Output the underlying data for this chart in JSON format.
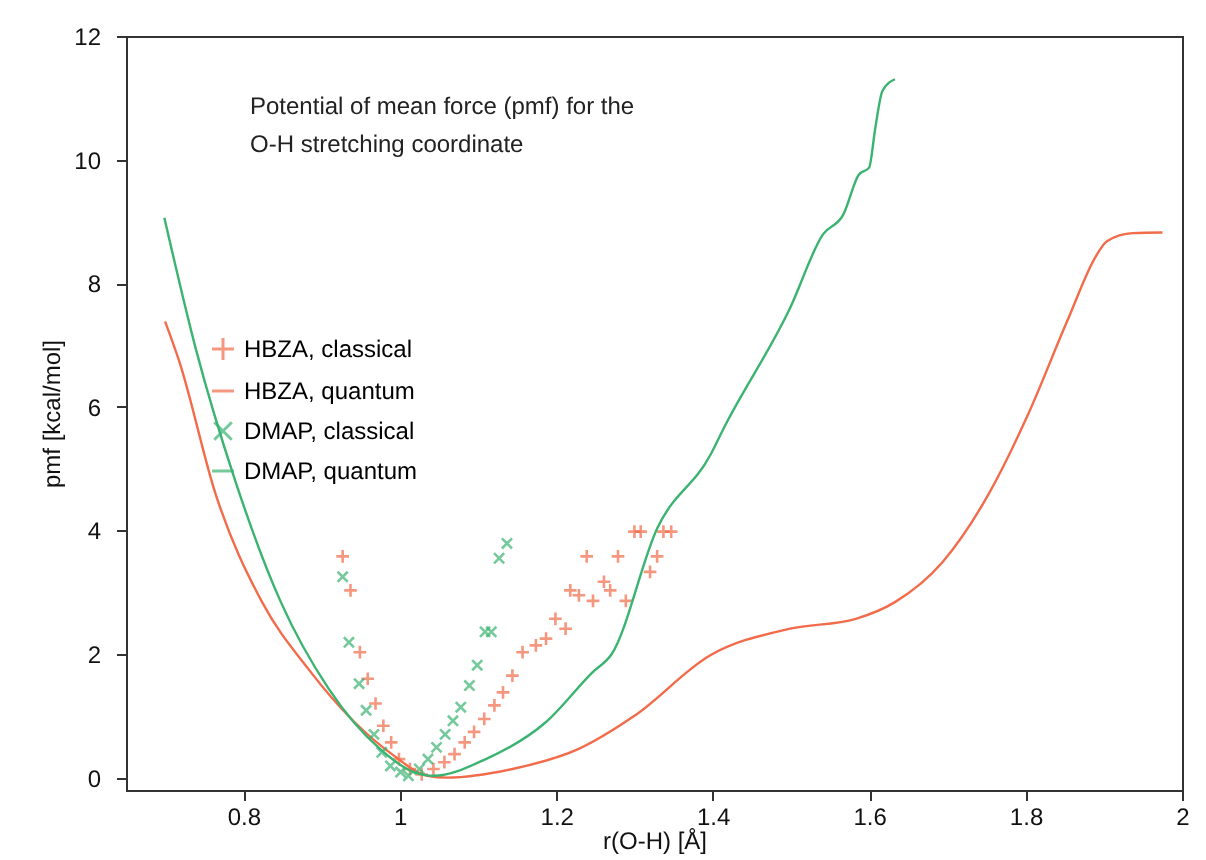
{
  "chart_data": {
    "type": "line",
    "xlabel": "r(O-H) [Å]",
    "ylabel": "pmf [kcal/mol]",
    "annotations": [
      "Potential of mean force (pmf) for the O-H stretching coordinate"
    ],
    "xlim": [
      0.65,
      2.0
    ],
    "xticks": [
      0.8,
      1,
      1.2,
      1.4,
      1.6,
      1.8,
      2
    ],
    "ylim": [
      -0.2,
      12
    ],
    "yticks": [
      0,
      2,
      4,
      6,
      8,
      10,
      12
    ],
    "grid": false,
    "legend": "left",
    "series": [
      {
        "name": "HBZA, classical",
        "type": "scatter",
        "marker": "cross",
        "color": "#f26b4a",
        "x": [
          0.927,
          0.937,
          0.949,
          0.959,
          0.969,
          0.979,
          0.989,
          0.999,
          1.013,
          1.028,
          1.043,
          1.057,
          1.07,
          1.083,
          1.095,
          1.108,
          1.121,
          1.132,
          1.144,
          1.157,
          1.174,
          1.187,
          1.199,
          1.212,
          1.218,
          1.229,
          1.239,
          1.247,
          1.261,
          1.269,
          1.279,
          1.289,
          1.3,
          1.308,
          1.32,
          1.329,
          1.337,
          1.347
        ],
        "values": [
          3.58,
          3.03,
          2.03,
          1.6,
          1.2,
          0.84,
          0.57,
          0.3,
          0.14,
          0.05,
          0.14,
          0.25,
          0.38,
          0.57,
          0.74,
          0.95,
          1.17,
          1.38,
          1.65,
          2.03,
          2.14,
          2.25,
          2.57,
          2.41,
          3.03,
          2.95,
          3.58,
          2.86,
          3.17,
          3.03,
          3.58,
          2.86,
          3.98,
          3.98,
          3.33,
          3.58,
          3.98,
          3.98
        ]
      },
      {
        "name": "HBZA, quantum",
        "color": "#f26b4a",
        "x": [
          0.7,
          0.718,
          0.765,
          0.824,
          0.883,
          0.942,
          0.992,
          1.035,
          1.06,
          1.144,
          1.228,
          1.3,
          1.397,
          1.499,
          1.583,
          1.633,
          1.694,
          1.752,
          1.803,
          1.853,
          1.891,
          1.904,
          1.937,
          1.975
        ],
        "values": [
          7.38,
          6.74,
          4.57,
          2.84,
          1.76,
          0.9,
          0.36,
          0.03,
          0,
          0.14,
          0.46,
          1.0,
          1.98,
          2.41,
          2.57,
          2.84,
          3.49,
          4.57,
          5.87,
          7.38,
          8.46,
          8.68,
          8.81,
          8.82
        ]
      },
      {
        "name": "DMAP, classical",
        "type": "scatter",
        "marker": "x",
        "color": "#3bb371",
        "x": [
          0.927,
          0.935,
          0.948,
          0.957,
          0.967,
          0.977,
          0.988,
          1.001,
          1.011,
          1.025,
          1.036,
          1.047,
          1.058,
          1.068,
          1.078,
          1.089,
          1.099,
          1.109,
          1.117,
          1.127,
          1.137
        ],
        "values": [
          3.25,
          2.19,
          1.52,
          1.09,
          0.7,
          0.41,
          0.19,
          0.09,
          0.03,
          0.14,
          0.3,
          0.49,
          0.7,
          0.92,
          1.14,
          1.49,
          1.82,
          2.36,
          2.36,
          3.55,
          3.79
        ]
      },
      {
        "name": "DMAP, quantum",
        "color": "#3bb371",
        "x": [
          0.699,
          0.739,
          0.79,
          0.848,
          0.909,
          0.975,
          1.018,
          1.043,
          1.11,
          1.187,
          1.246,
          1.271,
          1.329,
          1.397,
          1.414,
          1.499,
          1.541,
          1.567,
          1.587,
          1.6,
          1.608,
          1.617,
          1.633
        ],
        "values": [
          9.06,
          6.95,
          4.79,
          2.84,
          1.44,
          0.46,
          0.09,
          0.03,
          0.3,
          0.9,
          1.7,
          2.0,
          4.03,
          5.22,
          5.65,
          7.6,
          8.79,
          9.11,
          9.76,
          9.87,
          10.52,
          11.11,
          11.3
        ]
      }
    ]
  }
}
